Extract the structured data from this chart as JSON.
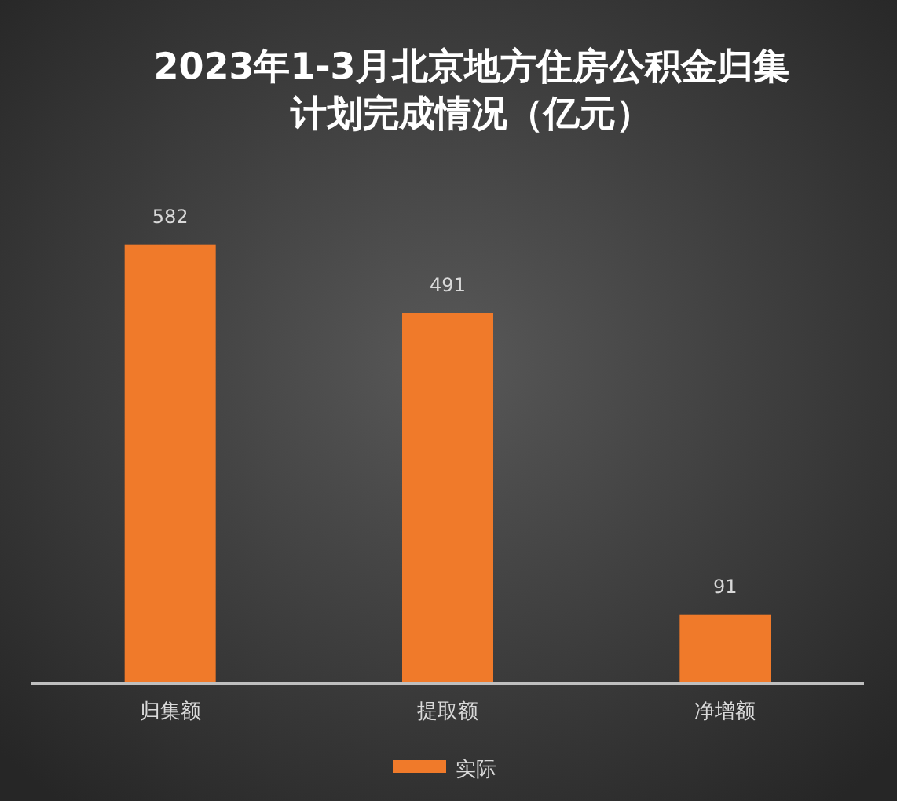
{
  "chart_data": {
    "type": "bar",
    "title": "2023年1-3月北京地方住房公积金归集计划完成情况（亿元）",
    "categories": [
      "归集额",
      "提取额",
      "净增额"
    ],
    "series": [
      {
        "name": "实际",
        "color": "#f07a2a",
        "values": [
          582,
          491,
          91
        ]
      }
    ],
    "data_labels": true,
    "legend": "bottom"
  }
}
